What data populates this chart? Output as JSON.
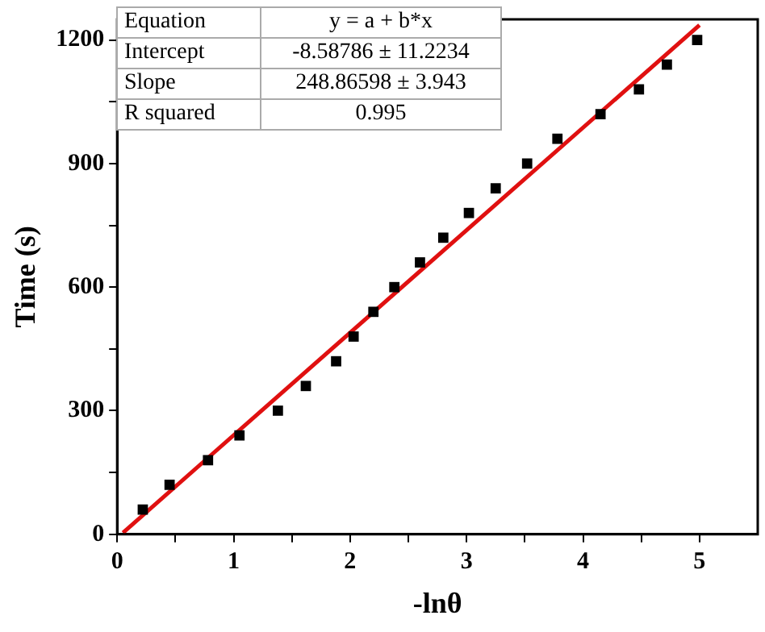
{
  "chart_data": {
    "type": "scatter",
    "xlabel": "-lnθ",
    "ylabel": "Time (s)",
    "xlim": [
      0,
      5.5
    ],
    "ylim": [
      0,
      1250
    ],
    "xticks": [
      0,
      {
        "value": 0.5,
        "label": null
      },
      1,
      {
        "value": 1.5,
        "label": null
      },
      2,
      {
        "value": 2.5,
        "label": null
      },
      3,
      {
        "value": 3.5,
        "label": null
      },
      4,
      {
        "value": 4.5,
        "label": null
      },
      5
    ],
    "yticks": [
      0,
      {
        "value": 150,
        "label": null
      },
      300,
      {
        "value": 450,
        "label": null
      },
      600,
      {
        "value": 750,
        "label": null
      },
      900,
      {
        "value": 1050,
        "label": null
      },
      1200
    ],
    "grid": false,
    "legend": false,
    "annotations": [
      "Equation",
      "y = a + b*x",
      "Intercept",
      "-8.58786 ± 11.2234",
      "Slope",
      "248.86598 ± 3.943",
      "R squared",
      "0.995"
    ],
    "series": [
      {
        "marker": "square",
        "color": "#000000",
        "x": [
          0.22,
          0.45,
          0.78,
          1.05,
          1.38,
          1.62,
          1.88,
          2.03,
          2.2,
          2.38,
          2.6,
          2.8,
          3.02,
          3.25,
          3.52,
          3.78,
          4.15,
          4.48,
          4.72,
          4.98
        ],
        "values": [
          60,
          120,
          180,
          240,
          300,
          360,
          420,
          480,
          540,
          600,
          660,
          720,
          780,
          840,
          900,
          960,
          1020,
          1080,
          1140,
          1200
        ]
      },
      {
        "type": "line",
        "marker": "none",
        "color": "#e01010",
        "x": [
          0.05,
          5
        ],
        "values": [
          4,
          1236
        ]
      }
    ]
  }
}
